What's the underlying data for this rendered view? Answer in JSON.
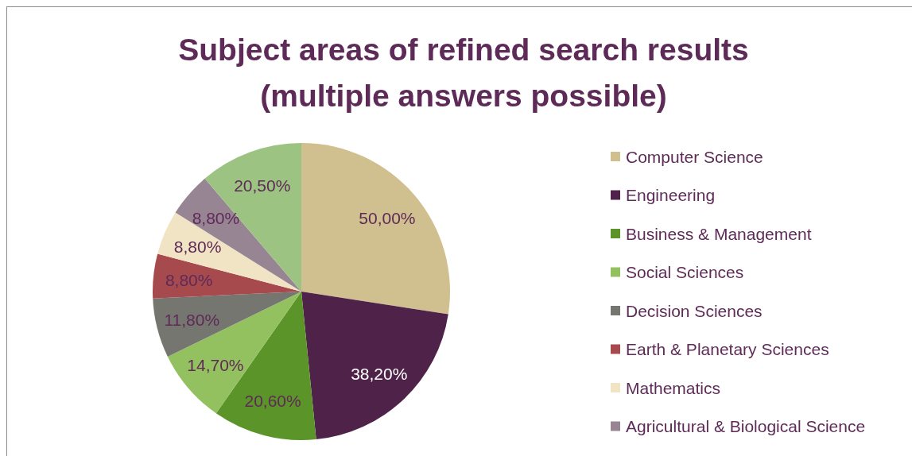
{
  "chart_data": {
    "type": "pie",
    "title": "Subject areas of refined search results\n(multiple answers possible)",
    "categories": [
      "Computer Science",
      "Engineering",
      "Business & Management",
      "Social Sciences",
      "Decision Sciences",
      "Earth & Planetary Sciences",
      "Mathematics",
      "Agricultural & Biological Science",
      null
    ],
    "values": [
      50,
      38.2,
      20.6,
      14.7,
      11.8,
      8.8,
      8.8,
      8.8,
      20.5
    ],
    "value_labels": [
      "50,00%",
      "38,20%",
      "20,60%",
      "14,70%",
      "11,80%",
      "8,80%",
      "8,80%",
      "8,80%",
      "20,50%"
    ],
    "colors": [
      "#d1c08f",
      "#4f2349",
      "#5b9428",
      "#93c160",
      "#767670",
      "#a74a4e",
      "#f1e4c4",
      "#978594",
      "#9cc382"
    ],
    "legend": "right"
  }
}
